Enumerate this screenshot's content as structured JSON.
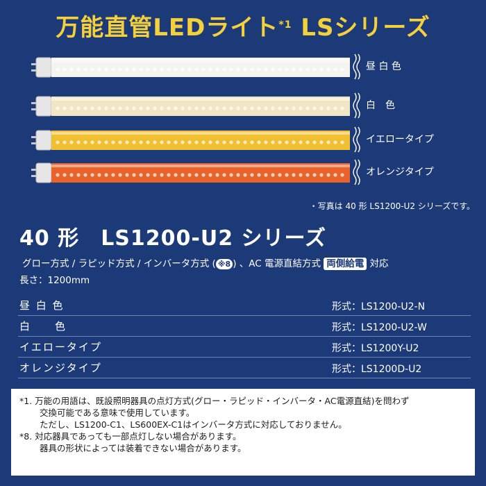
{
  "title": {
    "main": "万能直管LEDライト",
    "sup": "*1",
    "series": " LSシリーズ"
  },
  "tubes": [
    {
      "label": "昼 白 色",
      "color": "#f4f4f0"
    },
    {
      "label": "白　色",
      "color": "#f2e7c4"
    },
    {
      "label": "イエロータイプ",
      "color": "#f0c030"
    },
    {
      "label": "オレンジタイプ",
      "color": "#e8622a"
    }
  ],
  "photo_note": "・写真は 40 形 LS1200-U2 シリーズです。",
  "series_title": "40 形　LS1200-U2 シリーズ",
  "methods": {
    "text_before": "グロー方式 / ラピッド方式 / インバータ方式 (",
    "ref": "※8",
    "text_middle": ") 、AC 電源直結方式 ",
    "badge": "両側給電",
    "text_after": " 対応"
  },
  "length": "長さ：1200mm",
  "models": [
    {
      "name": "昼 白 色",
      "form": "形式：LS1200-U2-N"
    },
    {
      "name": "白　　色",
      "form": "形式：LS1200-U2-W"
    },
    {
      "name": "イエロータイプ",
      "form": "形式：LS1200Y-U2"
    },
    {
      "name": "オレンジタイプ",
      "form": "形式：LS1200D-U2"
    }
  ],
  "notes": [
    "*1. 万能の用語は、既設照明器具の点灯方式(グロー・ラピッド・インバータ・AC電源直結)を問わず",
    "交換可能である意味で使用しています。",
    "ただし、LS1200-C1、LS600EX-C1はインバータ方式に対応しておりません。",
    "*8. 対応器具であっても一部点灯しない場合があります。",
    "器具の形状によっては装着できない場合があります。"
  ]
}
